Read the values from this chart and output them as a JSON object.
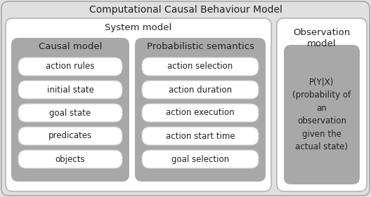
{
  "title": "Computational Causal Behaviour Model",
  "title_fontsize": 10,
  "bg_outer": "#e0e0e0",
  "bg_system_model": "#ffffff",
  "bg_causal": "#a8a8a8",
  "bg_prob": "#a8a8a8",
  "bg_obs_model": "#ffffff",
  "bg_obs_inner": "#a8a8a8",
  "bg_item": "#ffffff",
  "text_color": "#222222",
  "system_model_label": "System model",
  "causal_model_label": "Causal model",
  "prob_sem_label": "Probabilistic semantics",
  "obs_model_label": "Observation\nmodel",
  "obs_inner_text": "P(Y|X)\n(probability of\nan\nobservation\ngiven the\nactual state)",
  "causal_items": [
    "action rules",
    "initial state",
    "goal state",
    "predicates",
    "objects"
  ],
  "prob_items": [
    "action selection",
    "action duration",
    "action execution",
    "action start time",
    "goal selection"
  ],
  "item_fontsize": 8.5,
  "label_fontsize": 9.5
}
